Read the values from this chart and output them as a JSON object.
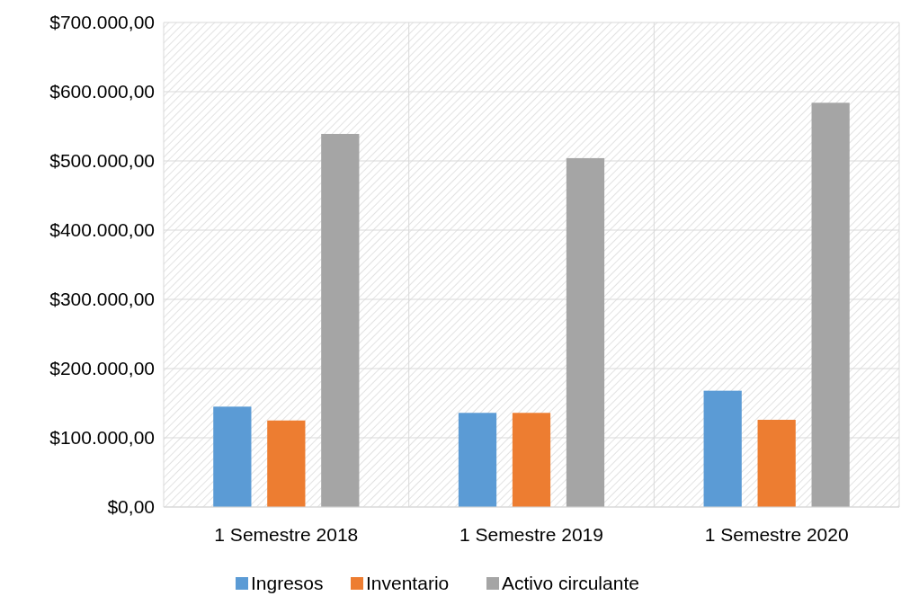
{
  "chart_data": {
    "type": "bar",
    "categories": [
      "1 Semestre 2018",
      "1 Semestre 2019",
      "1 Semestre 2020"
    ],
    "series": [
      {
        "name": "Ingresos",
        "color": "#5b9bd5",
        "values": [
          145000,
          136000,
          168000
        ]
      },
      {
        "name": "Inventario",
        "color": "#ed7d31",
        "values": [
          125000,
          136000,
          126000
        ]
      },
      {
        "name": "Activo circulante",
        "color": "#a5a5a5",
        "values": [
          539000,
          504000,
          584000
        ]
      }
    ],
    "ylim": [
      0,
      700000
    ],
    "yticks": [
      {
        "value": 0,
        "label": "$0,00"
      },
      {
        "value": 100000,
        "label": "$100.000,00"
      },
      {
        "value": 200000,
        "label": "$200.000,00"
      },
      {
        "value": 300000,
        "label": "$300.000,00"
      },
      {
        "value": 400000,
        "label": "$400.000,00"
      },
      {
        "value": 500000,
        "label": "$500.000,00"
      },
      {
        "value": 600000,
        "label": "$600.000,00"
      },
      {
        "value": 700000,
        "label": "$700.000,00"
      }
    ],
    "grid": true,
    "legend": "bottom"
  }
}
